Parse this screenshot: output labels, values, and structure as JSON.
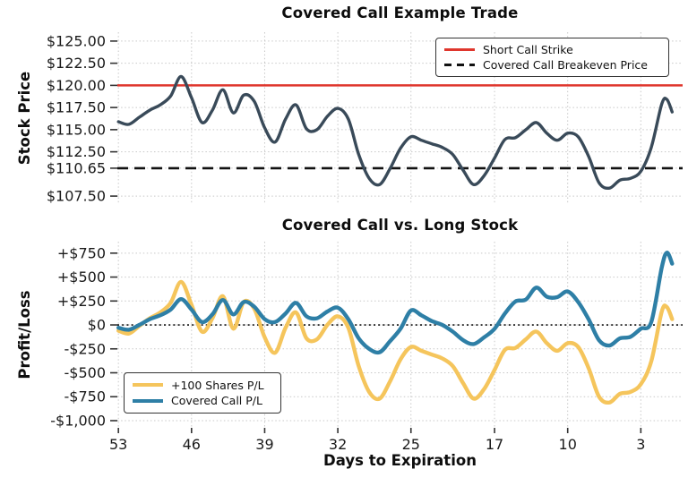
{
  "x": {
    "label": "Days to Expiration",
    "ticks": [
      53,
      46,
      39,
      32,
      25,
      17,
      10,
      3
    ],
    "xlim": [
      53.1,
      -1.0
    ],
    "days": [
      53,
      52,
      51,
      50,
      49,
      48,
      47,
      46,
      45,
      44,
      43,
      42,
      41,
      40,
      39,
      38,
      37,
      36,
      35,
      34,
      33,
      32,
      31,
      30,
      29,
      28,
      27,
      26,
      25,
      24,
      23,
      22,
      21,
      20,
      19,
      18,
      17,
      16,
      15,
      14,
      13,
      12,
      11,
      10,
      9,
      8,
      7,
      6,
      5,
      4,
      3,
      2,
      1,
      0.5,
      0
    ]
  },
  "grid_color": "#c8c8c8",
  "tick_color": "#333333",
  "text_color": "#1a1a1a",
  "chart_data": [
    {
      "type": "line",
      "title": "Covered Call Example Trade",
      "ylabel": "Stock Price",
      "ylim": [
        106.6,
        126.0
      ],
      "yticks": {
        "values": [
          125.0,
          122.5,
          120.0,
          117.5,
          115.0,
          112.5,
          110.65,
          107.5
        ],
        "labels": [
          "$125.00",
          "$122.50",
          "$120.00",
          "$117.50",
          "$115.00",
          "$112.50",
          "$110.65",
          "$107.50"
        ]
      },
      "legend_position": "upper right",
      "hlines": [
        {
          "label": "Short Call Strike",
          "y": 120.0,
          "color": "#df362d",
          "style": "solid",
          "width": 2.6
        },
        {
          "label": "Covered Call Breakeven Price",
          "y": 110.65,
          "color": "#111111",
          "style": "dashed",
          "width": 2.6
        }
      ],
      "series": [
        {
          "name": "Stock Price",
          "color": "#394a59",
          "line_width": 3.4,
          "values": [
            115.9,
            115.6,
            116.4,
            117.2,
            117.8,
            118.8,
            121.0,
            118.6,
            115.8,
            117.2,
            119.5,
            116.9,
            118.9,
            118.2,
            115.2,
            113.6,
            116.2,
            117.8,
            115.1,
            115.0,
            116.5,
            117.4,
            116.2,
            112.2,
            109.5,
            108.8,
            110.6,
            112.9,
            114.2,
            113.8,
            113.4,
            113.0,
            112.2,
            110.4,
            108.8,
            109.8,
            111.8,
            113.9,
            114.1,
            115.0,
            115.8,
            114.6,
            113.8,
            114.6,
            114.2,
            112.0,
            109.0,
            108.4,
            109.3,
            109.5,
            110.3,
            113.0,
            117.9,
            118.4,
            117.0
          ]
        }
      ]
    },
    {
      "type": "line",
      "title": "Covered Call vs. Long Stock",
      "ylabel": "Profit/Loss",
      "ylim": [
        -1075,
        870
      ],
      "yticks": {
        "values": [
          750,
          500,
          250,
          0,
          -250,
          -500,
          -750,
          -1000
        ],
        "labels": [
          "+$750",
          "+$500",
          "+$250",
          "$0",
          "-$250",
          "-$500",
          "-$750",
          "-$1,000"
        ]
      },
      "legend_position": "lower left",
      "hlines": [
        {
          "label": "zero-line",
          "y": 0,
          "color": "#111111",
          "style": "dotted",
          "width": 1.6
        }
      ],
      "series": [
        {
          "name": "+100 Shares P/L",
          "color": "#f5c55c",
          "line_width": 4.4,
          "values": [
            -60,
            -90,
            -10,
            70,
            130,
            230,
            450,
            210,
            -70,
            70,
            300,
            -40,
            240,
            170,
            -130,
            -290,
            -30,
            130,
            -140,
            -150,
            0,
            90,
            -30,
            -430,
            -700,
            -770,
            -590,
            -360,
            -230,
            -270,
            -310,
            -350,
            -430,
            -610,
            -770,
            -670,
            -470,
            -260,
            -240,
            -150,
            -70,
            -190,
            -270,
            -190,
            -230,
            -450,
            -750,
            -810,
            -720,
            -700,
            -620,
            -380,
            140,
            185,
            60
          ]
        },
        {
          "name": "Covered Call P/L",
          "color": "#2e7fa6",
          "line_width": 4.4,
          "values": [
            -30,
            -50,
            0,
            60,
            100,
            160,
            270,
            160,
            30,
            110,
            260,
            110,
            240,
            190,
            60,
            30,
            120,
            230,
            90,
            70,
            140,
            180,
            60,
            -140,
            -250,
            -285,
            -170,
            -40,
            150,
            100,
            40,
            0,
            -70,
            -160,
            -200,
            -130,
            -40,
            120,
            245,
            265,
            390,
            295,
            290,
            350,
            240,
            60,
            -160,
            -215,
            -140,
            -125,
            -40,
            30,
            600,
            755,
            640
          ]
        }
      ]
    }
  ]
}
